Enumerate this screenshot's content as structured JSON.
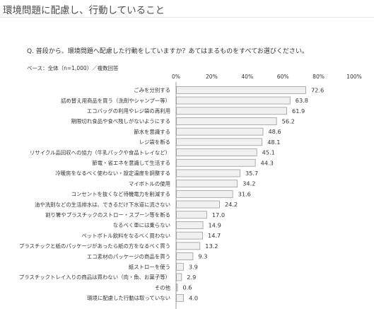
{
  "page": {
    "title": "環境問題に配慮し、行動していること",
    "question": "Q. 普段から、環境問題へ配慮した行動をしていますか？あてはまるものをすべてお選びください。",
    "base_note": "ベース：全体（n=1,000）／複数回答"
  },
  "chart_data": {
    "type": "bar",
    "orientation": "horizontal",
    "title": "",
    "xlabel": "",
    "ylabel": "",
    "xlim": [
      0,
      100
    ],
    "tick_labels": [
      "0%",
      "20%",
      "40%",
      "60%",
      "80%",
      "100%"
    ],
    "bar_fill": "#f0f0f0",
    "bar_stroke": "#9a9a9a",
    "grid": false,
    "categories": [
      "ごみを分別する",
      "詰め替え用商品を買う（洗剤やシャンプー等）",
      "エコバッグの利用やレジ袋の再利用",
      "期限切れ食品や食べ残しがないようにする",
      "節水を意識する",
      "レジ袋を断る",
      "リサイクル品回収への協力（牛乳パックや食品トレイなど）",
      "節電・省エネを意識して生活する",
      "冷暖房をなるべく使わない・設定温度を調整する",
      "マイボトルの使用",
      "コンセントを抜くなど待機電力を削減する",
      "油や洗剤などの生活排水は、できるだけ下水道に流さない",
      "割り箸やプラスチックのストロー・スプーン等を断る",
      "なるべく車には乗らない",
      "ペットボトル飲料をなるべく買わない",
      "プラスチックと紙のパッケージがあったら紙の方をなるべく買う",
      "エコ素材のパッケージの商品を買う",
      "紙ストローを使う",
      "プラスチックトレイ入りの商品は買わない（肉・魚、お菓子等）",
      "その他",
      "環境に配慮した行動は取っていない"
    ],
    "values": [
      72.6,
      63.8,
      61.9,
      56.2,
      48.6,
      48.1,
      45.1,
      44.3,
      35.7,
      34.2,
      31.6,
      24.2,
      17.0,
      14.9,
      14.7,
      13.2,
      9.3,
      3.9,
      2.9,
      0.6,
      4.0
    ],
    "value_labels": [
      "72.6",
      "63.8",
      "61.9",
      "56.2",
      "48.6",
      "48.1",
      "45.1",
      "44.3",
      "35.7",
      "34.2",
      "31.6",
      "24.2",
      "17.0",
      "14.9",
      "14.7",
      "13.2",
      "9.3",
      "3.9",
      "2.9",
      "0.6",
      "4.0"
    ]
  }
}
